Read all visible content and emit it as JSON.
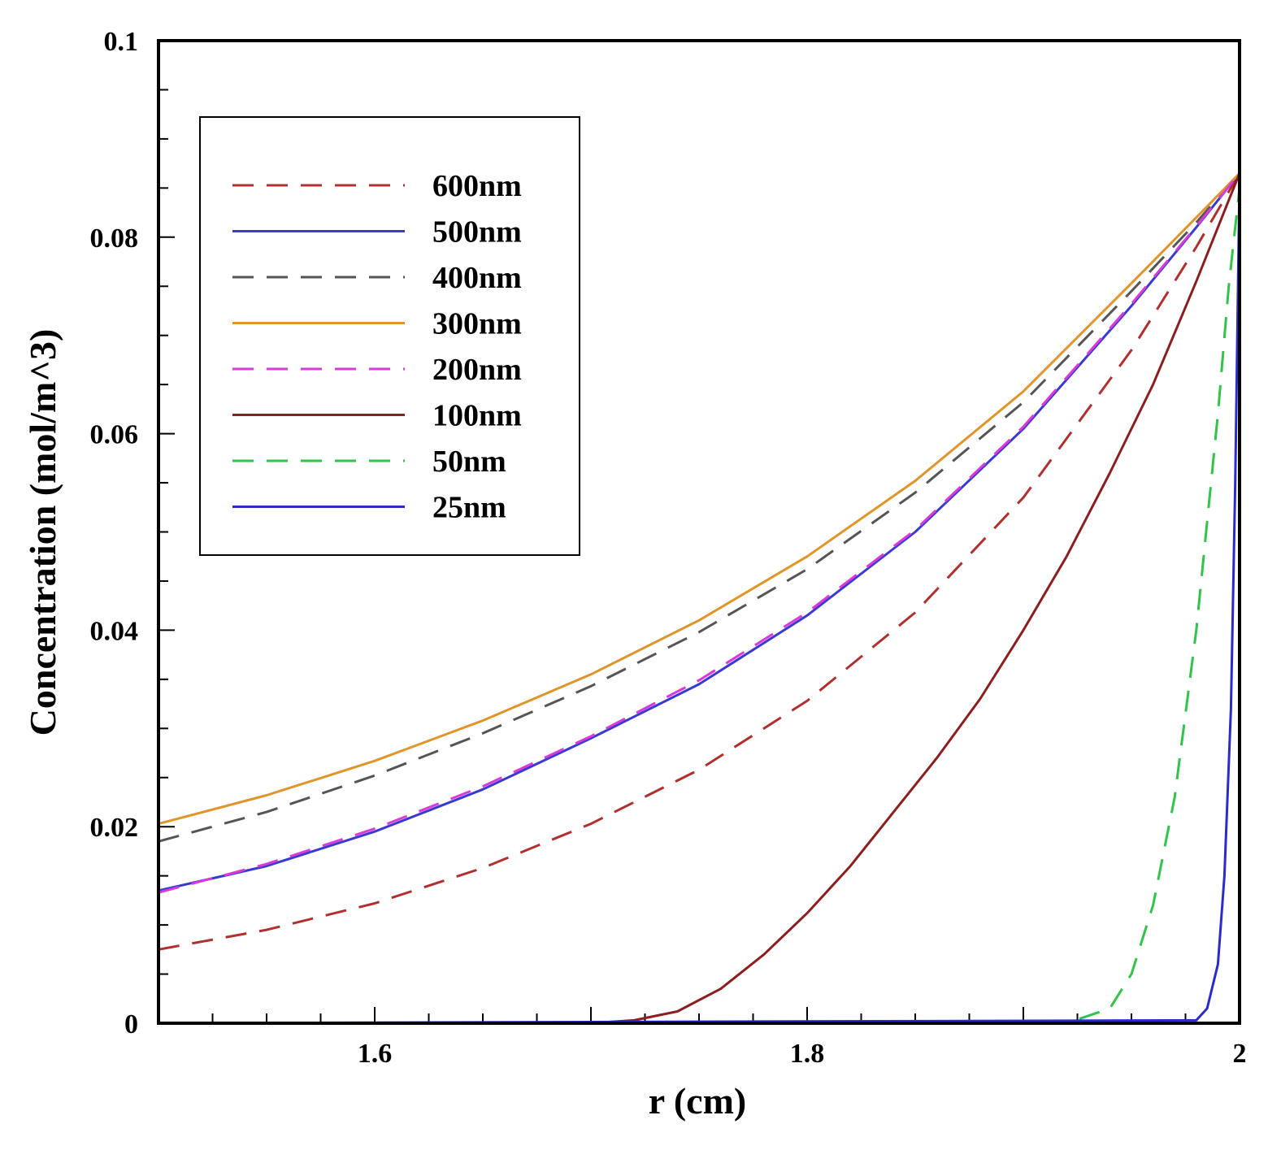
{
  "chart_data": {
    "type": "line",
    "title": "",
    "xlabel": "r (cm)",
    "ylabel": "Concentration (mol/m^3)",
    "xlim": [
      1.5,
      2.0
    ],
    "ylim": [
      0,
      0.1
    ],
    "x_ticks": [
      1.6,
      1.8,
      2.0
    ],
    "x_tick_labels": [
      "1.6",
      "1.8",
      "2"
    ],
    "y_ticks": [
      0,
      0.02,
      0.04,
      0.06,
      0.08,
      0.1
    ],
    "y_tick_labels": [
      "0",
      "0.02",
      "0.04",
      "0.06",
      "0.08",
      "0.1"
    ],
    "grid": false,
    "legend_position": "top-left",
    "series": [
      {
        "name": "600nm",
        "color": "#b03030",
        "dash": "dashed",
        "x": [
          1.5,
          1.55,
          1.6,
          1.65,
          1.7,
          1.75,
          1.8,
          1.85,
          1.9,
          1.95,
          1.98,
          2.0
        ],
        "y": [
          0.0075,
          0.0095,
          0.0122,
          0.0158,
          0.0203,
          0.0258,
          0.0328,
          0.0418,
          0.0535,
          0.0685,
          0.079,
          0.0865
        ]
      },
      {
        "name": "500nm",
        "color": "#3a3ad0",
        "dash": "solid",
        "x": [
          1.5,
          1.55,
          1.6,
          1.65,
          1.7,
          1.75,
          1.8,
          1.85,
          1.9,
          1.95,
          1.98,
          2.0
        ],
        "y": [
          0.0135,
          0.016,
          0.0195,
          0.0238,
          0.029,
          0.0345,
          0.0415,
          0.05,
          0.0605,
          0.073,
          0.081,
          0.0865
        ]
      },
      {
        "name": "400nm",
        "color": "#555555",
        "dash": "dashed",
        "x": [
          1.5,
          1.55,
          1.6,
          1.65,
          1.7,
          1.75,
          1.8,
          1.85,
          1.9,
          1.95,
          1.98,
          2.0
        ],
        "y": [
          0.0185,
          0.0215,
          0.0252,
          0.0295,
          0.0343,
          0.0398,
          0.0462,
          0.054,
          0.0632,
          0.0745,
          0.0815,
          0.0865
        ]
      },
      {
        "name": "300nm",
        "color": "#e0952a",
        "dash": "solid",
        "x": [
          1.5,
          1.55,
          1.6,
          1.65,
          1.7,
          1.75,
          1.8,
          1.85,
          1.9,
          1.95,
          1.98,
          2.0
        ],
        "y": [
          0.0203,
          0.0232,
          0.0267,
          0.0308,
          0.0355,
          0.041,
          0.0475,
          0.0552,
          0.0643,
          0.0753,
          0.082,
          0.0865
        ]
      },
      {
        "name": "200nm",
        "color": "#d93ad9",
        "dash": "dashed",
        "x": [
          1.5,
          1.55,
          1.6,
          1.65,
          1.7,
          1.75,
          1.8,
          1.85,
          1.9,
          1.95,
          1.98,
          2.0
        ],
        "y": [
          0.0133,
          0.0162,
          0.0198,
          0.0241,
          0.0292,
          0.0349,
          0.0418,
          0.0502,
          0.0607,
          0.0732,
          0.0811,
          0.0865
        ]
      },
      {
        "name": "100nm",
        "color": "#8b1e1e",
        "dash": "solid",
        "x": [
          1.5,
          1.6,
          1.7,
          1.72,
          1.74,
          1.76,
          1.78,
          1.8,
          1.82,
          1.84,
          1.86,
          1.88,
          1.9,
          1.92,
          1.94,
          1.96,
          1.98,
          2.0
        ],
        "y": [
          0,
          0,
          0,
          0.0003,
          0.0012,
          0.0035,
          0.007,
          0.0112,
          0.016,
          0.0215,
          0.027,
          0.033,
          0.04,
          0.0475,
          0.056,
          0.065,
          0.0755,
          0.0865
        ]
      },
      {
        "name": "50nm",
        "color": "#33c24a",
        "dash": "dashed",
        "x": [
          1.5,
          1.9,
          1.92,
          1.94,
          1.95,
          1.96,
          1.97,
          1.98,
          1.99,
          1.995,
          2.0
        ],
        "y": [
          0,
          0,
          0,
          0.0015,
          0.005,
          0.012,
          0.023,
          0.04,
          0.062,
          0.075,
          0.085
        ]
      },
      {
        "name": "25nm",
        "color": "#2b2bcc",
        "dash": "solid",
        "x": [
          1.5,
          1.98,
          1.985,
          1.99,
          1.993,
          1.996,
          1.998,
          2.0
        ],
        "y": [
          0,
          0.0003,
          0.0015,
          0.006,
          0.015,
          0.032,
          0.055,
          0.086
        ]
      }
    ]
  }
}
